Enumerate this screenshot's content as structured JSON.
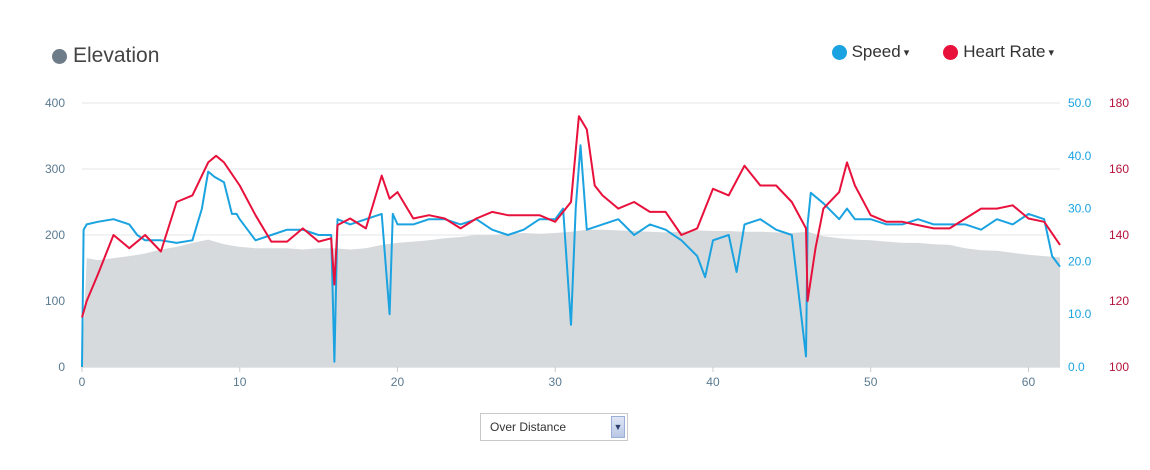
{
  "legend": {
    "elevation": {
      "label": "Elevation",
      "color": "#6e7b88"
    },
    "speed": {
      "label": "Speed",
      "color": "#1aa3e0"
    },
    "heart_rate": {
      "label": "Heart Rate",
      "color": "#e8113c"
    },
    "caret_icon": "▾"
  },
  "dropdown": {
    "value": "Over Distance",
    "arrow_icon": "chevron-down-icon"
  },
  "chart_data": {
    "type": "area",
    "x_axis": {
      "range": [
        0,
        62
      ],
      "ticks": [
        "0",
        "10",
        "20",
        "30",
        "40",
        "50",
        "60"
      ]
    },
    "axes": {
      "elevation": {
        "range": [
          0,
          400
        ],
        "ticks": [
          "0",
          "100",
          "200",
          "300",
          "400"
        ],
        "color": "#5a7a90"
      },
      "speed": {
        "range": [
          0,
          50
        ],
        "ticks": [
          "0.0",
          "10.0",
          "20.0",
          "30.0",
          "40.0",
          "50.0"
        ],
        "color": "#1aa3e0"
      },
      "heart_rate": {
        "range": [
          100,
          180
        ],
        "ticks": [
          "100",
          "120",
          "140",
          "160",
          "180"
        ],
        "color": "#b5123a"
      }
    },
    "grid": true,
    "series": [
      {
        "name": "Elevation",
        "axis": "elevation",
        "style": "area",
        "color": "#d7dadd",
        "x": [
          0,
          0.3,
          1,
          2,
          3,
          4,
          5,
          6,
          7,
          8,
          9,
          10,
          11,
          12,
          13,
          14,
          15,
          16,
          17,
          18,
          19,
          20,
          21,
          22,
          23,
          24,
          25,
          26,
          27,
          28,
          29,
          30,
          31,
          32,
          33,
          34,
          35,
          36,
          37,
          38,
          39,
          40,
          41,
          42,
          43,
          44,
          45,
          46,
          47,
          48,
          49,
          50,
          51,
          52,
          53,
          54,
          55,
          56,
          57,
          58,
          59,
          60,
          61,
          62
        ],
        "values": [
          0,
          165,
          162,
          165,
          168,
          172,
          178,
          182,
          188,
          193,
          186,
          182,
          180,
          180,
          180,
          178,
          180,
          180,
          178,
          180,
          185,
          188,
          190,
          192,
          195,
          197,
          200,
          200,
          202,
          203,
          202,
          203,
          205,
          208,
          208,
          207,
          206,
          205,
          204,
          205,
          207,
          206,
          206,
          205,
          205,
          204,
          203,
          205,
          198,
          195,
          193,
          192,
          190,
          188,
          188,
          186,
          185,
          180,
          177,
          176,
          173,
          170,
          168,
          166
        ]
      },
      {
        "name": "Speed",
        "axis": "speed",
        "style": "line",
        "color": "#1aa3e0",
        "x": [
          0,
          0.1,
          0.3,
          1,
          2,
          3,
          3.5,
          4,
          5,
          6,
          7,
          7.6,
          8,
          8.4,
          9,
          9.5,
          9.8,
          10,
          11,
          12,
          13,
          14,
          15,
          15.8,
          16,
          16.2,
          17,
          18,
          19,
          19.5,
          19.7,
          20,
          21,
          22,
          23,
          24,
          25,
          26,
          27,
          28,
          29,
          30,
          30.5,
          31,
          31.3,
          31.6,
          32,
          33,
          34,
          35,
          36,
          37,
          38,
          39,
          39.5,
          40,
          41,
          41.5,
          42,
          43,
          44,
          45,
          45.9,
          46,
          46.2,
          47,
          48,
          48.5,
          49,
          50,
          51,
          52,
          53,
          54,
          55,
          56,
          57,
          58,
          59,
          60,
          61,
          61.5,
          62
        ],
        "values": [
          0,
          26,
          27,
          27.5,
          28,
          27,
          25,
          24,
          24,
          23.5,
          24,
          30,
          37,
          36,
          35,
          29,
          29,
          28,
          24,
          25,
          26,
          26,
          25,
          25,
          1,
          28,
          27,
          28,
          29,
          10,
          29,
          27,
          27,
          28,
          28,
          27,
          28,
          26,
          25,
          26,
          28,
          28,
          30,
          8,
          30,
          42,
          26,
          27,
          28,
          25,
          27,
          26,
          24,
          21,
          17,
          24,
          25,
          18,
          27,
          28,
          26,
          25,
          2,
          27,
          33,
          31,
          28,
          30,
          28,
          28,
          27,
          27,
          28,
          27,
          27,
          27,
          26,
          28,
          27,
          29,
          28,
          21,
          19
        ]
      },
      {
        "name": "Heart Rate",
        "axis": "heart_rate",
        "style": "line",
        "color": "#e8113c",
        "x": [
          0,
          0.3,
          1,
          2,
          3,
          4,
          5,
          6,
          7,
          8,
          8.5,
          9,
          10,
          11,
          12,
          13,
          14,
          15,
          15.8,
          16,
          16.2,
          17,
          18,
          19,
          19.5,
          20,
          21,
          22,
          23,
          24,
          25,
          26,
          27,
          28,
          29,
          30,
          31,
          31.5,
          32,
          32.5,
          33,
          34,
          35,
          36,
          37,
          38,
          39,
          40,
          41,
          42,
          43,
          44,
          45,
          45.9,
          46,
          46.5,
          47,
          48,
          48.5,
          49,
          50,
          51,
          52,
          53,
          54,
          55,
          56,
          57,
          58,
          59,
          60,
          61,
          62
        ],
        "values": [
          115,
          120,
          128,
          140,
          136,
          140,
          135,
          150,
          152,
          162,
          164,
          162,
          155,
          146,
          138,
          138,
          142,
          138,
          139,
          125,
          143,
          145,
          142,
          158,
          151,
          153,
          145,
          146,
          145,
          142,
          145,
          147,
          146,
          146,
          146,
          144,
          150,
          176,
          172,
          155,
          152,
          148,
          150,
          147,
          147,
          140,
          142,
          154,
          152,
          161,
          155,
          155,
          150,
          142,
          120,
          136,
          148,
          153,
          162,
          155,
          146,
          144,
          144,
          143,
          142,
          142,
          145,
          148,
          148,
          149,
          145,
          144,
          137
        ]
      }
    ]
  }
}
